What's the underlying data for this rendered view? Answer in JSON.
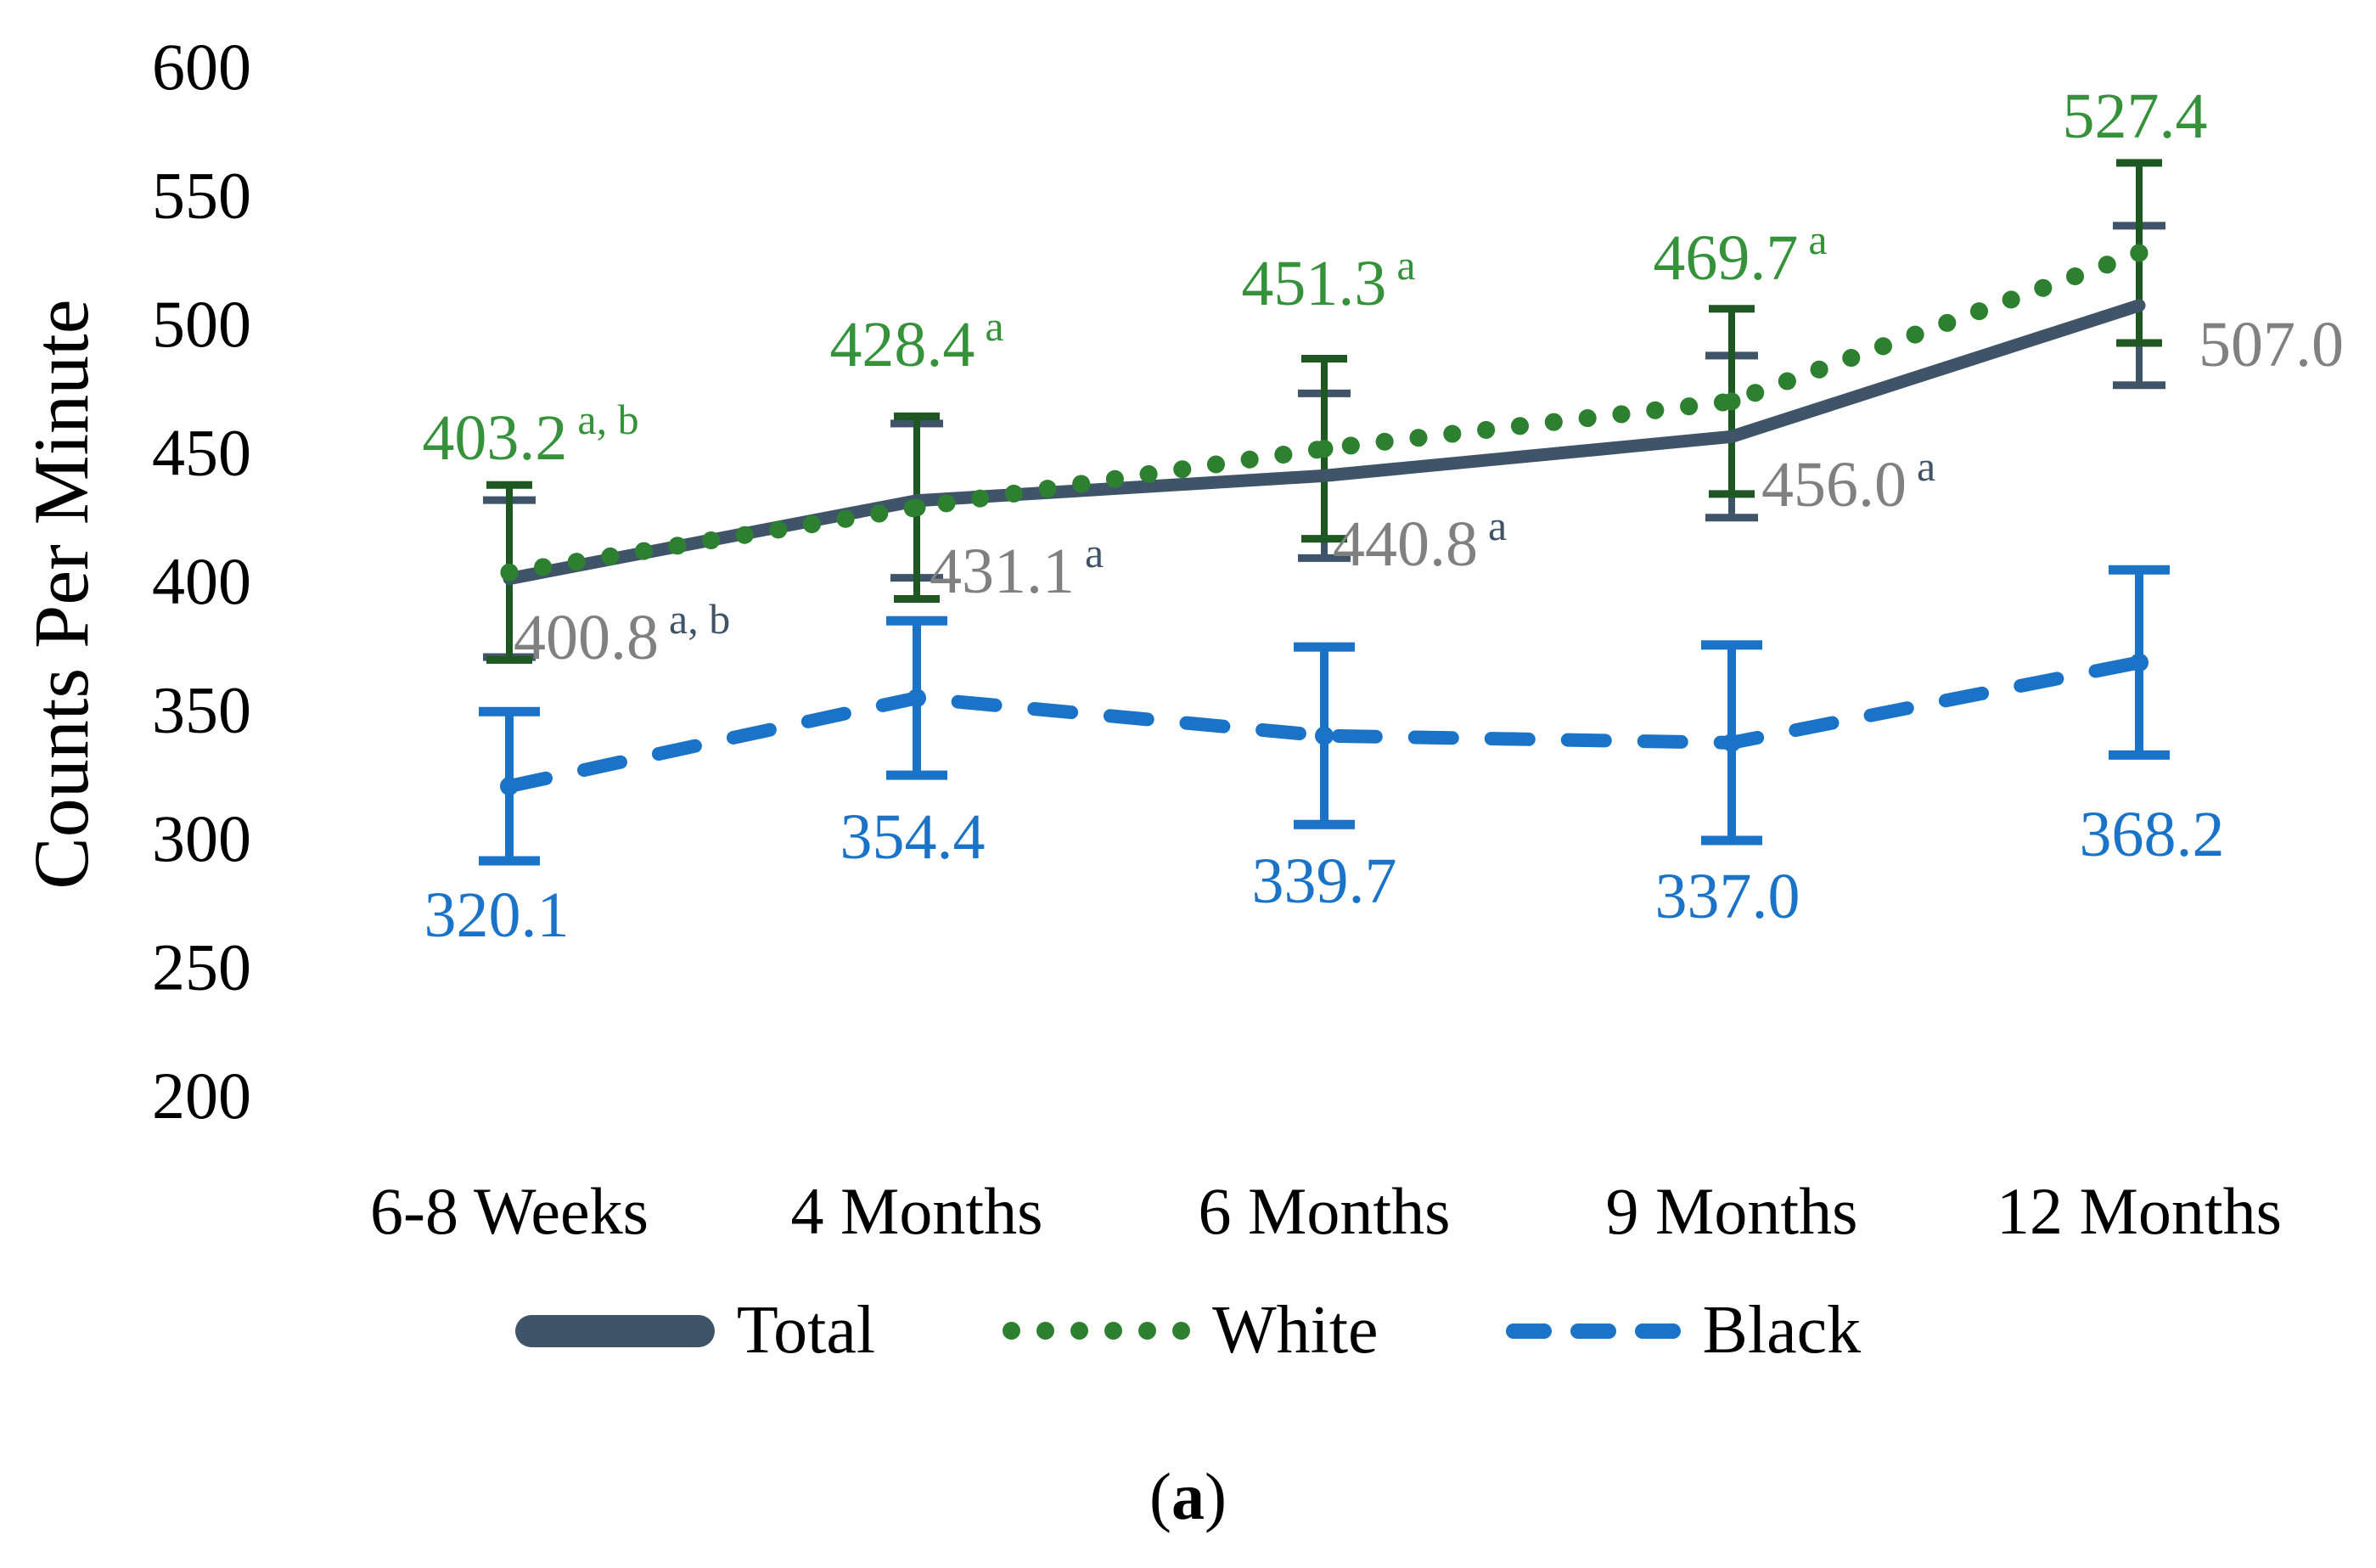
{
  "colors": {
    "total": "#3F5468",
    "white": "#2E8031",
    "white_label": "#35923B",
    "white_error": "#1F5723",
    "black": "#1B73C8",
    "gray_label": "#808080"
  },
  "legend": {
    "items": [
      {
        "label": "Total"
      },
      {
        "label": "White"
      },
      {
        "label": "Black"
      }
    ]
  },
  "caption": {
    "open": "(",
    "letter": "a",
    "close": ")"
  },
  "chart_data": {
    "type": "line",
    "title": "",
    "xlabel": "",
    "ylabel": "Counts Per Minute",
    "ylim": [
      200,
      600
    ],
    "ytick_step": 50,
    "yticks": [
      200,
      250,
      300,
      350,
      400,
      450,
      500,
      550,
      600
    ],
    "grid": false,
    "legend_position": "bottom",
    "categories": [
      "6-8 Weeks",
      "4 Months",
      "6 Months",
      "9 Months",
      "12 Months"
    ],
    "series": [
      {
        "name": "Total",
        "line_style": "solid",
        "color": "#3F5468",
        "label_color": "#808080",
        "sup_color": "#3F5468",
        "error_color": "#3F5468",
        "values": [
          400.8,
          431.1,
          440.8,
          456.0,
          507.0
        ],
        "error": [
          30.5,
          30,
          32,
          31.5,
          31
        ],
        "labels": [
          "400.8",
          "431.1",
          "440.8",
          "456.0",
          "507.0"
        ],
        "superscripts": [
          "a, b",
          "a",
          "a",
          "a",
          ""
        ]
      },
      {
        "name": "White",
        "line_style": "dotted",
        "color": "#2E8031",
        "label_color": "#35923B",
        "sup_color": "#35923B",
        "error_color": "#1F5723",
        "values": [
          403.2,
          428.4,
          451.3,
          469.7,
          527.4
        ],
        "error": [
          34,
          35.5,
          35,
          36,
          35
        ],
        "labels": [
          "403.2",
          "428.4",
          "451.3",
          "469.7",
          "527.4"
        ],
        "superscripts": [
          "a, b",
          "a",
          "a",
          "a",
          ""
        ]
      },
      {
        "name": "Black",
        "line_style": "dashed",
        "color": "#1B73C8",
        "label_color": "#1B73C8",
        "sup_color": "#1B73C8",
        "error_color": "#1B73C8",
        "values": [
          320.1,
          354.4,
          339.7,
          337.0,
          368.2
        ],
        "error": [
          29,
          30,
          34.5,
          38,
          36
        ],
        "labels": [
          "320.1",
          "354.4",
          "339.7",
          "337.0",
          "368.2"
        ],
        "superscripts": [
          "",
          "",
          "",
          "",
          ""
        ]
      }
    ]
  }
}
